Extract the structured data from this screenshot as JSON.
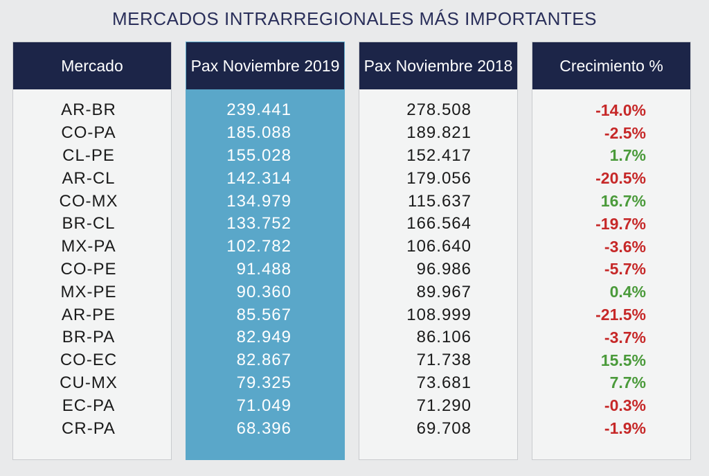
{
  "title": "MERCADOS INTRARREGIONALES MÁS IMPORTANTES",
  "colors": {
    "header_bg": "#1c2548",
    "highlight_col": "#5aa7c9",
    "negative": "#c62828",
    "positive": "#4a9a3a"
  },
  "chart_data": {
    "type": "table",
    "title": "MERCADOS INTRARREGIONALES MÁS IMPORTANTES",
    "columns": [
      "Mercado",
      "Pax Noviembre 2019",
      "Pax Noviembre 2018",
      "Crecimiento %"
    ],
    "rows": [
      {
        "mercado": "AR-BR",
        "pax2019": "239.441",
        "pax2018": "278.508",
        "crecimiento": "-14.0%",
        "sign": "negative"
      },
      {
        "mercado": "CO-PA",
        "pax2019": "185.088",
        "pax2018": "189.821",
        "crecimiento": "-2.5%",
        "sign": "negative"
      },
      {
        "mercado": "CL-PE",
        "pax2019": "155.028",
        "pax2018": "152.417",
        "crecimiento": "1.7%",
        "sign": "positive"
      },
      {
        "mercado": "AR-CL",
        "pax2019": "142.314",
        "pax2018": "179.056",
        "crecimiento": "-20.5%",
        "sign": "negative"
      },
      {
        "mercado": "CO-MX",
        "pax2019": "134.979",
        "pax2018": "115.637",
        "crecimiento": "16.7%",
        "sign": "positive"
      },
      {
        "mercado": "BR-CL",
        "pax2019": "133.752",
        "pax2018": "166.564",
        "crecimiento": "-19.7%",
        "sign": "negative"
      },
      {
        "mercado": "MX-PA",
        "pax2019": "102.782",
        "pax2018": "106.640",
        "crecimiento": "-3.6%",
        "sign": "negative"
      },
      {
        "mercado": "CO-PE",
        "pax2019": "91.488",
        "pax2018": "96.986",
        "crecimiento": "-5.7%",
        "sign": "negative"
      },
      {
        "mercado": "MX-PE",
        "pax2019": "90.360",
        "pax2018": "89.967",
        "crecimiento": "0.4%",
        "sign": "positive"
      },
      {
        "mercado": "AR-PE",
        "pax2019": "85.567",
        "pax2018": "108.999",
        "crecimiento": "-21.5%",
        "sign": "negative"
      },
      {
        "mercado": "BR-PA",
        "pax2019": "82.949",
        "pax2018": "86.106",
        "crecimiento": "-3.7%",
        "sign": "negative"
      },
      {
        "mercado": "CO-EC",
        "pax2019": "82.867",
        "pax2018": "71.738",
        "crecimiento": "15.5%",
        "sign": "positive"
      },
      {
        "mercado": "CU-MX",
        "pax2019": "79.325",
        "pax2018": "73.681",
        "crecimiento": "7.7%",
        "sign": "positive"
      },
      {
        "mercado": "EC-PA",
        "pax2019": "71.049",
        "pax2018": "71.290",
        "crecimiento": "-0.3%",
        "sign": "negative"
      },
      {
        "mercado": "CR-PA",
        "pax2019": "68.396",
        "pax2018": "69.708",
        "crecimiento": "-1.9%",
        "sign": "negative"
      }
    ]
  }
}
